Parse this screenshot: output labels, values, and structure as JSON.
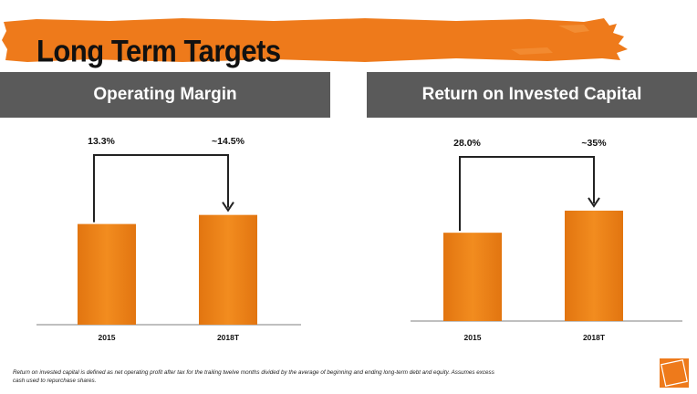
{
  "slide": {
    "title": "Long Term Targets",
    "footnote": "Return on invested capital is defined as net operating profit after tax for the trailing twelve months divided by the average of beginning and ending long-term debt and equity. Assumes excess cash used to repurchase shares."
  },
  "colors": {
    "bar": "#f28c1f",
    "bar_dark": "#e27510",
    "header_bg": "#5a5a5a",
    "brand_orange": "#ee7a1b"
  },
  "icons": {
    "logo": "the-home-depot-logo"
  },
  "chart_data": [
    {
      "type": "bar",
      "title": "Operating Margin",
      "categories": [
        "2015",
        "2018T"
      ],
      "values": [
        13.3,
        14.5
      ],
      "data_labels": [
        "13.3%",
        "~14.5%"
      ],
      "xlabel": "",
      "ylabel": "",
      "ylim": [
        0,
        20
      ],
      "grid": false,
      "annotation": "arrow from 2015 to 2018T"
    },
    {
      "type": "bar",
      "title": "Return on Invested Capital",
      "categories": [
        "2015",
        "2018T"
      ],
      "values": [
        28.0,
        35.0
      ],
      "data_labels": [
        "28.0%",
        "~35%"
      ],
      "xlabel": "",
      "ylabel": "",
      "ylim": [
        0,
        48
      ],
      "grid": false,
      "annotation": "arrow from 2015 to 2018T"
    }
  ]
}
